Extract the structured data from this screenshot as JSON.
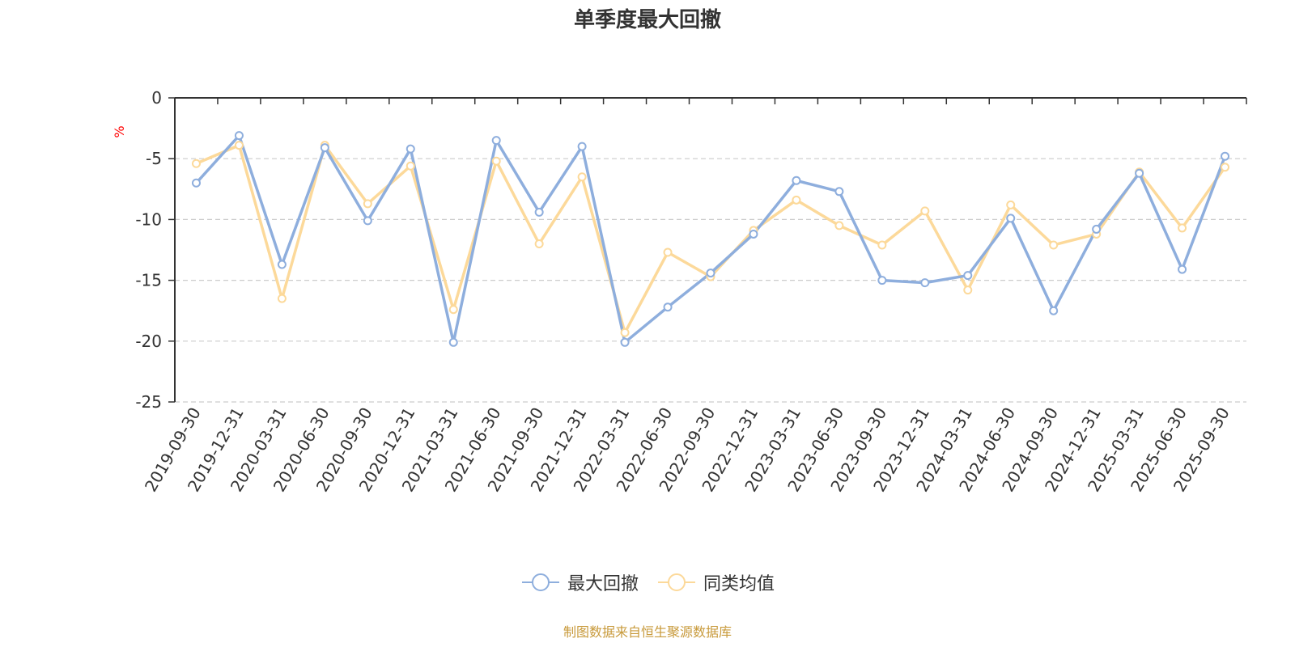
{
  "chart_data": {
    "type": "line",
    "title": "单季度最大回撤",
    "xlabel": "",
    "ylabel": "%",
    "ylim": [
      -25,
      0
    ],
    "yticks": [
      0,
      -5,
      -10,
      -15,
      -20,
      -25
    ],
    "grid": true,
    "legend_position": "bottom-center",
    "categories": [
      "2019-09-30",
      "2019-12-31",
      "2020-03-31",
      "2020-06-30",
      "2020-09-30",
      "2020-12-31",
      "2021-03-31",
      "2021-06-30",
      "2021-09-30",
      "2021-12-31",
      "2022-03-31",
      "2022-06-30",
      "2022-09-30",
      "2022-12-31",
      "2023-03-31",
      "2023-06-30",
      "2023-09-30",
      "2023-12-31",
      "2024-03-31",
      "2024-06-30",
      "2024-09-30",
      "2024-12-31",
      "2025-03-31",
      "2025-06-30",
      "2025-09-30"
    ],
    "series": [
      {
        "name": "最大回撤",
        "color": "#8eaedd",
        "values": [
          -7.0,
          -3.1,
          -13.7,
          -4.1,
          -10.1,
          -4.2,
          -20.1,
          -3.5,
          -9.4,
          -4.0,
          -20.1,
          -17.2,
          -14.4,
          -11.2,
          -6.8,
          -7.7,
          -15.0,
          -15.2,
          -14.6,
          -9.9,
          -17.5,
          -10.8,
          -6.2,
          -14.1,
          -4.8
        ]
      },
      {
        "name": "同类均值",
        "color": "#fcd99a",
        "values": [
          -5.4,
          -3.9,
          -16.5,
          -3.9,
          -8.7,
          -5.6,
          -17.4,
          -5.2,
          -12.0,
          -6.5,
          -19.3,
          -12.7,
          -14.7,
          -10.9,
          -8.4,
          -10.5,
          -12.1,
          -9.3,
          -15.8,
          -8.8,
          -12.1,
          -11.2,
          -6.1,
          -10.7,
          -5.7
        ]
      }
    ]
  },
  "source_note": "制图数据来自恒生聚源数据库"
}
